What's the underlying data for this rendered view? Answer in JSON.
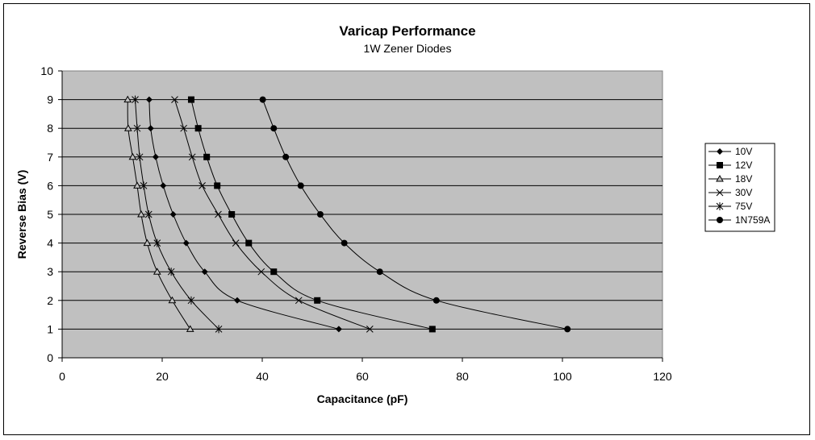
{
  "chart_data": {
    "type": "scatter",
    "title": "Varicap Performance",
    "subtitle": "1W Zener Diodes",
    "xlabel": "Capacitance (pF)",
    "ylabel": "Reverse Bias (V)",
    "xlim": [
      0,
      120
    ],
    "ylim": [
      0,
      10
    ],
    "xticks": [
      0,
      20,
      40,
      60,
      80,
      100,
      120
    ],
    "yticks": [
      0,
      1,
      2,
      3,
      4,
      5,
      6,
      7,
      8,
      9,
      10
    ],
    "grid": "horizontal major gridlines",
    "plot_background": "#c0c0c0",
    "legend_position": "right",
    "series": [
      {
        "name": "10V",
        "marker": "diamond",
        "points": [
          [
            55.3,
            1
          ],
          [
            35,
            2
          ],
          [
            28.5,
            3
          ],
          [
            24.8,
            4
          ],
          [
            22.2,
            5
          ],
          [
            20.2,
            6
          ],
          [
            18.7,
            7
          ],
          [
            17.7,
            8
          ],
          [
            17.4,
            9
          ]
        ]
      },
      {
        "name": "12V",
        "marker": "square",
        "points": [
          [
            74,
            1
          ],
          [
            51,
            2
          ],
          [
            42.3,
            3
          ],
          [
            37.3,
            4
          ],
          [
            33.9,
            5
          ],
          [
            31,
            6
          ],
          [
            28.9,
            7
          ],
          [
            27.2,
            8
          ],
          [
            25.8,
            9
          ]
        ]
      },
      {
        "name": "18V",
        "marker": "triangle",
        "points": [
          [
            25.6,
            1
          ],
          [
            22,
            2
          ],
          [
            19,
            3
          ],
          [
            17,
            4
          ],
          [
            15.8,
            5
          ],
          [
            15,
            6
          ],
          [
            14.1,
            7
          ],
          [
            13.2,
            8
          ],
          [
            13.1,
            9
          ]
        ]
      },
      {
        "name": "30V",
        "marker": "x",
        "points": [
          [
            61.5,
            1
          ],
          [
            47.3,
            2
          ],
          [
            39.8,
            3
          ],
          [
            34.7,
            4
          ],
          [
            31.2,
            5
          ],
          [
            28,
            6
          ],
          [
            26,
            7
          ],
          [
            24.3,
            8
          ],
          [
            22.5,
            9
          ]
        ]
      },
      {
        "name": "75V",
        "marker": "star",
        "points": [
          [
            31.3,
            1
          ],
          [
            25.8,
            2
          ],
          [
            21.8,
            3
          ],
          [
            19,
            4
          ],
          [
            17.3,
            5
          ],
          [
            16.3,
            6
          ],
          [
            15.5,
            7
          ],
          [
            15,
            8
          ],
          [
            14.6,
            9
          ]
        ]
      },
      {
        "name": "1N759A",
        "marker": "circle",
        "points": [
          [
            101,
            1
          ],
          [
            74.8,
            2
          ],
          [
            63.5,
            3
          ],
          [
            56.4,
            4
          ],
          [
            51.6,
            5
          ],
          [
            47.7,
            6
          ],
          [
            44.7,
            7
          ],
          [
            42.3,
            8
          ],
          [
            40.1,
            9
          ]
        ]
      }
    ]
  }
}
